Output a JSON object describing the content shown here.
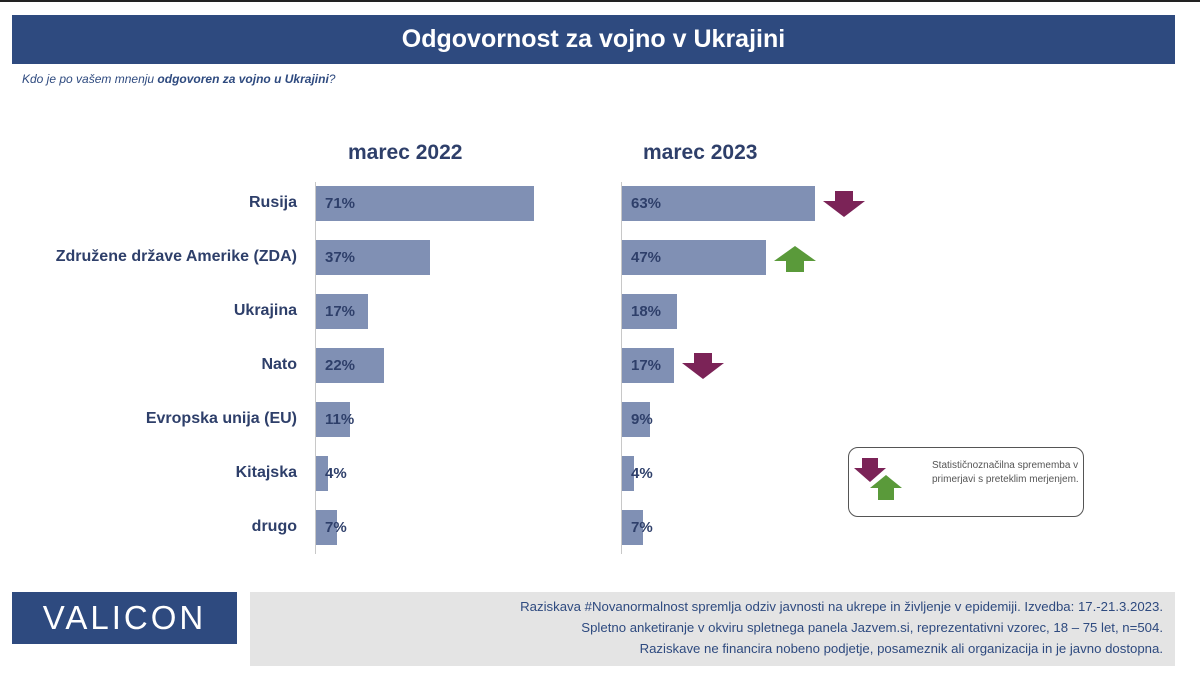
{
  "title": "Odgovornost za vojno v Ukrajini",
  "subtitle": {
    "prefix": "Kdo je po vašem mnenju ",
    "bold": "odgovoren za vojno u Ukrajini",
    "suffix": "?"
  },
  "legend": {
    "text": "Statističnoznačilna sprememba v primerjavi s preteklim merjenjem."
  },
  "logo": "VALICON",
  "footer": {
    "line1": "Raziskava #Novanormalnost spremlja odziv javnosti na ukrepe in življenje v epidemiji. Izvedba: 17.-21.3.2023.",
    "line2": "Spletno anketiranje v okviru spletnega panela Jazvem.si, reprezentativni vzorec, 18 – 75 let, n=504.",
    "line3": "Raziskave ne financira nobeno podjetje, posameznik ali organizacija in je javno dostopna."
  },
  "colors": {
    "bar": "#8090b4",
    "down": "#7b2357",
    "up": "#5a9a3a",
    "header": "#2e4a7f"
  },
  "chart_data": {
    "type": "bar",
    "orientation": "horizontal",
    "unit": "%",
    "categories": [
      "Rusija",
      "Združene države Amerike (ZDA)",
      "Ukrajina",
      "Nato",
      "Evropska unija (EU)",
      "Kitajska",
      "drugo"
    ],
    "series": [
      {
        "name": "marec 2022",
        "values": [
          71,
          37,
          17,
          22,
          11,
          4,
          7
        ],
        "labels": [
          "71%",
          "37%",
          "17%",
          "22%",
          "11%",
          "4%",
          "7%"
        ]
      },
      {
        "name": "marec 2023",
        "values": [
          63,
          47,
          18,
          17,
          9,
          4,
          7
        ],
        "labels": [
          "63%",
          "47%",
          "18%",
          "17%",
          "9%",
          "4%",
          "7%"
        ],
        "change": [
          "down",
          "up",
          null,
          "down",
          null,
          null,
          null
        ]
      }
    ]
  }
}
